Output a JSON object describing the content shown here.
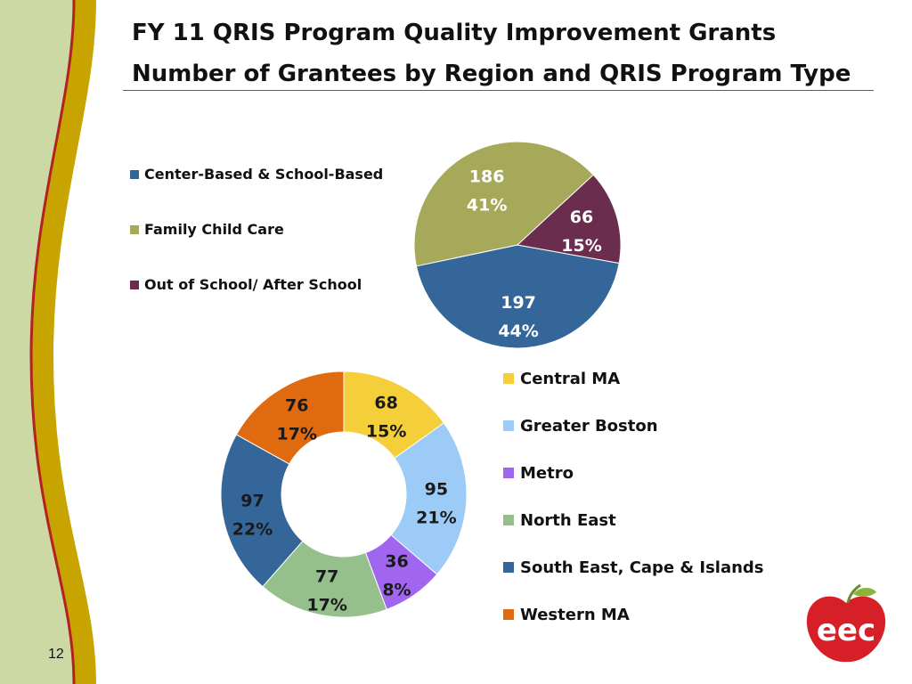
{
  "title_line1": "FY 11 QRIS Program Quality Improvement  Grants",
  "title_line2": "Number of Grantees by Region and QRIS Program Type",
  "page_number": "12",
  "logo_text": "eec",
  "chart_data": [
    {
      "type": "pie",
      "categories": [
        "Center-Based & School-Based",
        "Family Child Care",
        "Out of School/ After School"
      ],
      "values": [
        197,
        186,
        66
      ],
      "percent_labels": [
        "44%",
        "41%",
        "15%"
      ],
      "colors": [
        "#34669a",
        "#a6a85a",
        "#6b2d4e"
      ],
      "legend_position": "left"
    },
    {
      "type": "donut",
      "categories": [
        "Central MA",
        "Greater Boston",
        "Metro",
        "North East",
        "South East, Cape & Islands",
        "Western MA"
      ],
      "values": [
        68,
        95,
        36,
        77,
        97,
        76
      ],
      "percent_labels": [
        "15%",
        "21%",
        "8%",
        "17%",
        "22%",
        "17%"
      ],
      "colors": [
        "#f5cf3a",
        "#9dcbf7",
        "#a066f0",
        "#95c08b",
        "#34669a",
        "#e06a10"
      ],
      "legend_position": "right"
    }
  ]
}
